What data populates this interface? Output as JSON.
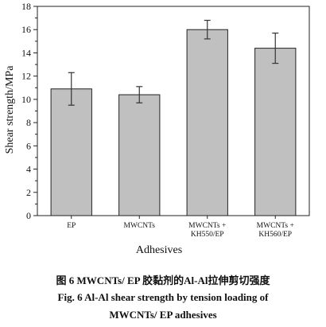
{
  "chart_data": {
    "type": "bar",
    "categories": [
      "EP",
      "MWCNTs",
      "MWCNTs +\nKH550/EP",
      "MWCNTs +\nKH560/EP"
    ],
    "values": [
      10.9,
      10.4,
      16.0,
      14.4
    ],
    "errors": [
      1.4,
      0.7,
      0.8,
      1.3
    ],
    "xlabel": "Adhesives",
    "ylabel": "Shear strength/MPa",
    "ylim": [
      0,
      18
    ],
    "yticks": [
      0,
      2,
      4,
      6,
      8,
      10,
      12,
      14,
      16,
      18
    ],
    "grid": false,
    "bar_color": "#c0c0c0",
    "error_bar_color": "#333333"
  },
  "caption": {
    "chinese": "图 6   MWCNTs/ EP 胶黏剂的Al-Al拉伸剪切强度",
    "english_line1": "Fig. 6   Al-Al shear strength by tension loading of",
    "english_line2": "MWCNTs/ EP adhesives"
  }
}
